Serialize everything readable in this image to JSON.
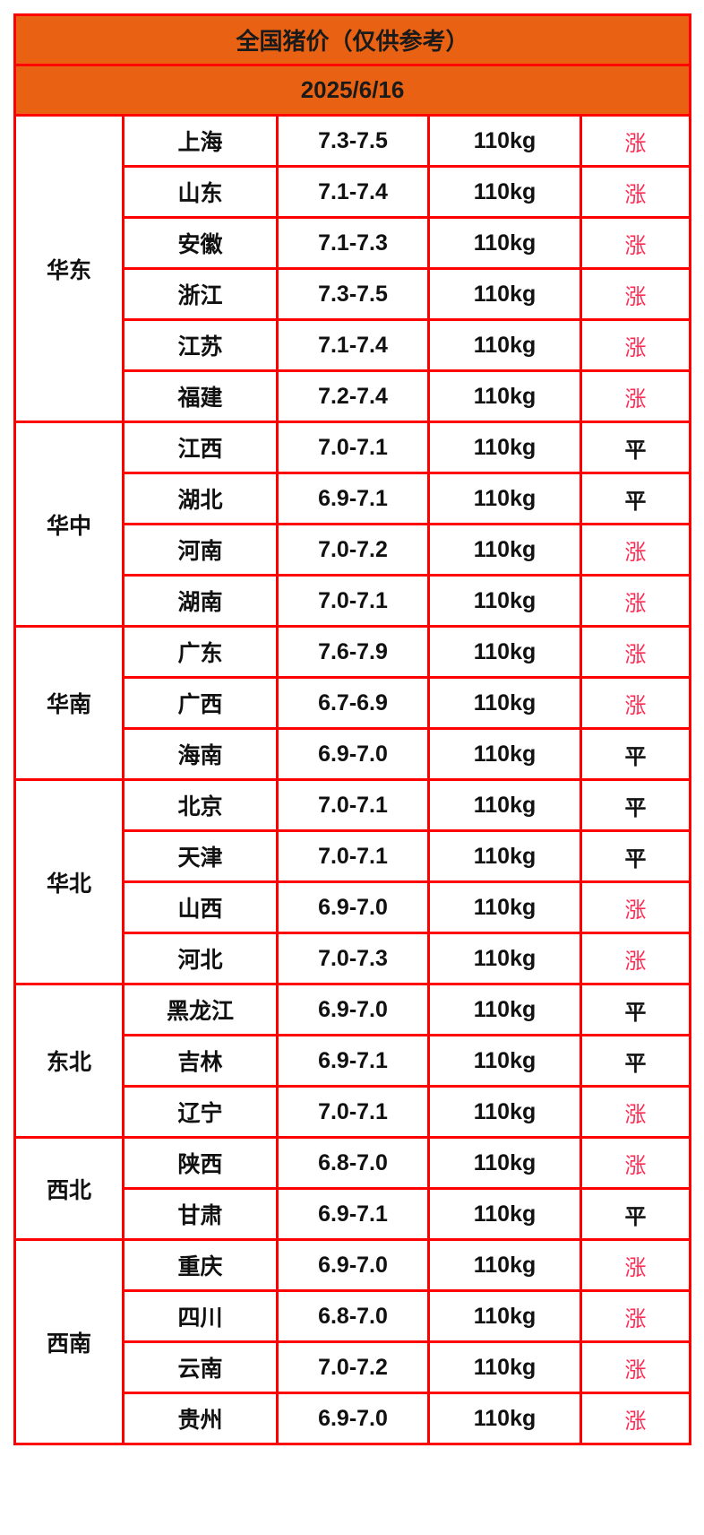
{
  "title": "全国猪价（仅供参考）",
  "date": "2025/6/16",
  "colors": {
    "header_bg": "#e96213",
    "border": "#ff0000",
    "up": "#ff2d55",
    "flat": "#111111"
  },
  "regions": [
    {
      "name": "华东",
      "rows": [
        {
          "province": "上海",
          "price": "7.3-7.5",
          "weight": "110kg",
          "trend": "涨"
        },
        {
          "province": "山东",
          "price": "7.1-7.4",
          "weight": "110kg",
          "trend": "涨"
        },
        {
          "province": "安徽",
          "price": "7.1-7.3",
          "weight": "110kg",
          "trend": "涨"
        },
        {
          "province": "浙江",
          "price": "7.3-7.5",
          "weight": "110kg",
          "trend": "涨"
        },
        {
          "province": "江苏",
          "price": "7.1-7.4",
          "weight": "110kg",
          "trend": "涨"
        },
        {
          "province": "福建",
          "price": "7.2-7.4",
          "weight": "110kg",
          "trend": "涨"
        }
      ]
    },
    {
      "name": "华中",
      "rows": [
        {
          "province": "江西",
          "price": "7.0-7.1",
          "weight": "110kg",
          "trend": "平"
        },
        {
          "province": "湖北",
          "price": "6.9-7.1",
          "weight": "110kg",
          "trend": "平"
        },
        {
          "province": "河南",
          "price": "7.0-7.2",
          "weight": "110kg",
          "trend": "涨"
        },
        {
          "province": "湖南",
          "price": "7.0-7.1",
          "weight": "110kg",
          "trend": "涨"
        }
      ]
    },
    {
      "name": "华南",
      "rows": [
        {
          "province": "广东",
          "price": "7.6-7.9",
          "weight": "110kg",
          "trend": "涨"
        },
        {
          "province": "广西",
          "price": "6.7-6.9",
          "weight": "110kg",
          "trend": "涨"
        },
        {
          "province": "海南",
          "price": "6.9-7.0",
          "weight": "110kg",
          "trend": "平"
        }
      ]
    },
    {
      "name": "华北",
      "rows": [
        {
          "province": "北京",
          "price": "7.0-7.1",
          "weight": "110kg",
          "trend": "平"
        },
        {
          "province": "天津",
          "price": "7.0-7.1",
          "weight": "110kg",
          "trend": "平"
        },
        {
          "province": "山西",
          "price": "6.9-7.0",
          "weight": "110kg",
          "trend": "涨"
        },
        {
          "province": "河北",
          "price": "7.0-7.3",
          "weight": "110kg",
          "trend": "涨"
        }
      ]
    },
    {
      "name": "东北",
      "rows": [
        {
          "province": "黑龙江",
          "price": "6.9-7.0",
          "weight": "110kg",
          "trend": "平"
        },
        {
          "province": "吉林",
          "price": "6.9-7.1",
          "weight": "110kg",
          "trend": "平"
        },
        {
          "province": "辽宁",
          "price": "7.0-7.1",
          "weight": "110kg",
          "trend": "涨"
        }
      ]
    },
    {
      "name": "西北",
      "rows": [
        {
          "province": "陕西",
          "price": "6.8-7.0",
          "weight": "110kg",
          "trend": "涨"
        },
        {
          "province": "甘肃",
          "price": "6.9-7.1",
          "weight": "110kg",
          "trend": "平"
        }
      ]
    },
    {
      "name": "西南",
      "rows": [
        {
          "province": "重庆",
          "price": "6.9-7.0",
          "weight": "110kg",
          "trend": "涨"
        },
        {
          "province": "四川",
          "price": "6.8-7.0",
          "weight": "110kg",
          "trend": "涨"
        },
        {
          "province": "云南",
          "price": "7.0-7.2",
          "weight": "110kg",
          "trend": "涨"
        },
        {
          "province": "贵州",
          "price": "6.9-7.0",
          "weight": "110kg",
          "trend": "涨"
        }
      ]
    }
  ]
}
